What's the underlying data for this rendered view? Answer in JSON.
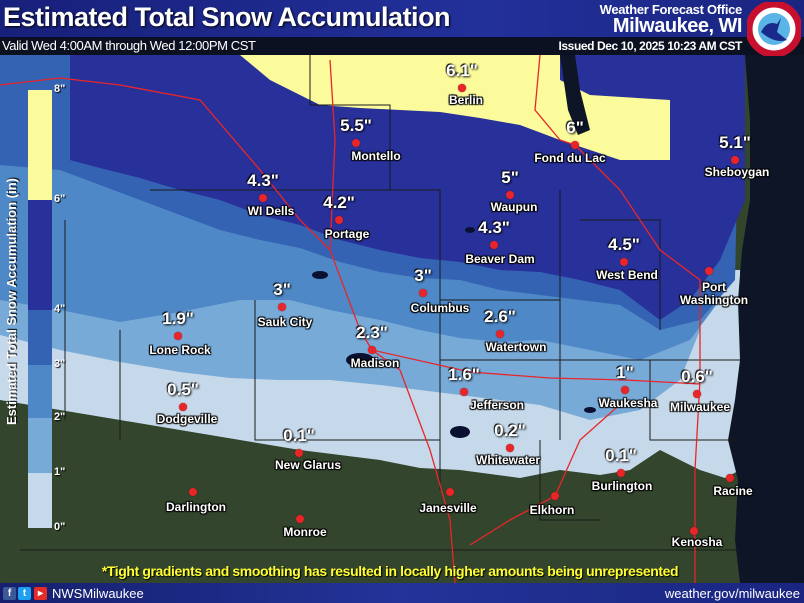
{
  "header": {
    "title": "Estimated Total Snow Accumulation",
    "valid": "Valid Wed 4:00AM through Wed 12:00PM CST",
    "office_line1": "Weather Forecast Office",
    "office_line2": "Milwaukee, WI",
    "issued": "Issued Dec 10, 2025 10:23 AM CST",
    "logo_text": "NATIONAL WEATHER SERVICE"
  },
  "legend": {
    "title": "Estimated Total Snow Accumulation (in)",
    "bins": [
      {
        "range": "0\"-1\"",
        "color": "#c6d9ea"
      },
      {
        "range": "1\"-2\"",
        "color": "#78aad8"
      },
      {
        "range": "2\"-3\"",
        "color": "#4f88c6"
      },
      {
        "range": "3\"-4\"",
        "color": "#3463b3"
      },
      {
        "range": "4\"-6\"",
        "color": "#28309a"
      },
      {
        "range": "6\"-8\"",
        "color": "#fbfb9b"
      }
    ],
    "ticks": [
      "0\"",
      "1\"",
      "2\"",
      "3\"",
      "4\"",
      "6\"",
      "8\""
    ]
  },
  "cities": [
    {
      "name": "Berlin",
      "value": "6.1\""
    },
    {
      "name": "Montello",
      "value": "5.5\""
    },
    {
      "name": "Fond du Lac",
      "value": "6\""
    },
    {
      "name": "Sheboygan",
      "value": "5.1\""
    },
    {
      "name": "WI Dells",
      "value": "4.3\""
    },
    {
      "name": "Portage",
      "value": "4.2\""
    },
    {
      "name": "Waupun",
      "value": "5\""
    },
    {
      "name": "Beaver Dam",
      "value": "4.3\""
    },
    {
      "name": "West Bend",
      "value": "4.5\""
    },
    {
      "name": "Port Washington",
      "value": ""
    },
    {
      "name": "Columbus",
      "value": "3\""
    },
    {
      "name": "Sauk City",
      "value": "3\""
    },
    {
      "name": "Lone Rock",
      "value": "1.9\""
    },
    {
      "name": "Madison",
      "value": "2.3\""
    },
    {
      "name": "Watertown",
      "value": "2.6\""
    },
    {
      "name": "Jefferson",
      "value": "1.6\""
    },
    {
      "name": "Waukesha",
      "value": "1\""
    },
    {
      "name": "Milwaukee",
      "value": "0.6\""
    },
    {
      "name": "Dodgeville",
      "value": "0.5\""
    },
    {
      "name": "New Glarus",
      "value": "0.1\""
    },
    {
      "name": "Whitewater",
      "value": "0.2\""
    },
    {
      "name": "Burlington",
      "value": "0.1\""
    },
    {
      "name": "Racine",
      "value": ""
    },
    {
      "name": "Darlington",
      "value": ""
    },
    {
      "name": "Janesville",
      "value": ""
    },
    {
      "name": "Elkhorn",
      "value": ""
    },
    {
      "name": "Monroe",
      "value": ""
    },
    {
      "name": "Kenosha",
      "value": ""
    }
  ],
  "note": "*Tight gradients and smoothing has resulted in locally higher amounts being unrepresented",
  "footer": {
    "social_icons": [
      "facebook-icon",
      "twitter-icon",
      "youtube-icon"
    ],
    "handle": "NWSMilwaukee",
    "website": "weather.gov/milwaukee"
  }
}
